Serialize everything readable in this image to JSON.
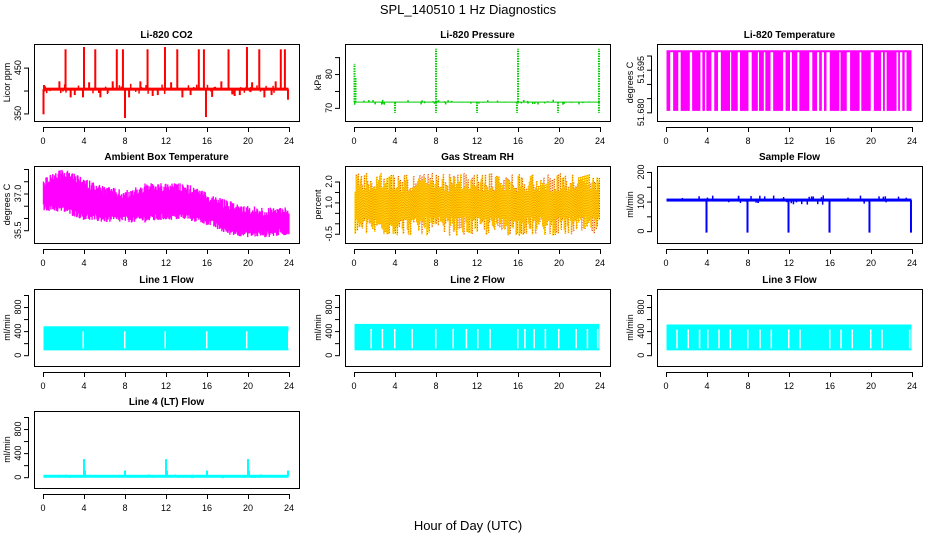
{
  "title": "SPL_140510  1 Hz Diagnostics",
  "x_axis_label": "Hour of Day (UTC)",
  "chart_data": [
    {
      "id": "co2",
      "type": "line",
      "title": "Li-820 CO2",
      "ylabel": "Licor ppm",
      "color": "#ff0000",
      "xlim": [
        0,
        24
      ],
      "ylim": [
        340,
        495
      ],
      "xticks": [
        0,
        4,
        8,
        12,
        16,
        20,
        24
      ],
      "yticks": [
        350,
        400,
        450
      ],
      "ytick_labels": [
        "350",
        "",
        "450"
      ],
      "baseline": 403,
      "spread": 3,
      "spikes": [
        {
          "x": 0.05,
          "y": 348
        },
        {
          "x": 0.1,
          "y": 412
        },
        {
          "x": 1.6,
          "y": 420
        },
        {
          "x": 2.2,
          "y": 490
        },
        {
          "x": 2.7,
          "y": 385
        },
        {
          "x": 3.1,
          "y": 390
        },
        {
          "x": 3.9,
          "y": 385
        },
        {
          "x": 4.0,
          "y": 495
        },
        {
          "x": 4.5,
          "y": 418
        },
        {
          "x": 5.1,
          "y": 490
        },
        {
          "x": 5.6,
          "y": 385
        },
        {
          "x": 6.8,
          "y": 420
        },
        {
          "x": 7.2,
          "y": 490
        },
        {
          "x": 7.8,
          "y": 490
        },
        {
          "x": 8.0,
          "y": 340
        },
        {
          "x": 8.4,
          "y": 385
        },
        {
          "x": 9.5,
          "y": 420
        },
        {
          "x": 10.2,
          "y": 490
        },
        {
          "x": 10.7,
          "y": 388
        },
        {
          "x": 11.2,
          "y": 390
        },
        {
          "x": 11.9,
          "y": 495
        },
        {
          "x": 12.5,
          "y": 418
        },
        {
          "x": 13.1,
          "y": 490
        },
        {
          "x": 13.6,
          "y": 385
        },
        {
          "x": 14.4,
          "y": 390
        },
        {
          "x": 15.2,
          "y": 490
        },
        {
          "x": 15.7,
          "y": 490
        },
        {
          "x": 15.9,
          "y": 342
        },
        {
          "x": 16.5,
          "y": 386
        },
        {
          "x": 17.4,
          "y": 420
        },
        {
          "x": 18.1,
          "y": 490
        },
        {
          "x": 18.7,
          "y": 388
        },
        {
          "x": 19.2,
          "y": 390
        },
        {
          "x": 19.9,
          "y": 495
        },
        {
          "x": 20.4,
          "y": 418
        },
        {
          "x": 21.1,
          "y": 490
        },
        {
          "x": 21.6,
          "y": 385
        },
        {
          "x": 22.3,
          "y": 390
        },
        {
          "x": 22.7,
          "y": 420
        },
        {
          "x": 23.2,
          "y": 490
        },
        {
          "x": 23.6,
          "y": 490
        },
        {
          "x": 23.9,
          "y": 380
        }
      ]
    },
    {
      "id": "pressure",
      "type": "scatter",
      "title": "Li-820 Pressure",
      "ylabel": "kPa",
      "color": "#00cc00",
      "xlim": [
        0,
        24
      ],
      "ylim": [
        67,
        88
      ],
      "xticks": [
        0,
        4,
        8,
        12,
        16,
        20,
        24
      ],
      "yticks": [
        70,
        75,
        80,
        85
      ],
      "ytick_labels": [
        "70",
        "",
        "80",
        ""
      ],
      "baseline": 71.7,
      "spread": 0.2,
      "spikes": [
        {
          "x": 0.05,
          "y": 83
        },
        {
          "x": 0.15,
          "y": 79
        },
        {
          "x": 4.0,
          "y": 68.5
        },
        {
          "x": 8.0,
          "y": 87.5
        },
        {
          "x": 8.0,
          "y": 68.5
        },
        {
          "x": 12.0,
          "y": 68.5
        },
        {
          "x": 16.0,
          "y": 87.5
        },
        {
          "x": 15.9,
          "y": 68.5
        },
        {
          "x": 19.9,
          "y": 68.5
        },
        {
          "x": 23.9,
          "y": 87.5
        },
        {
          "x": 23.9,
          "y": 68.5
        }
      ]
    },
    {
      "id": "licor-temp",
      "type": "line",
      "title": "Li-820 Temperature",
      "ylabel": "degrees C",
      "color": "#ff00ff",
      "xlim": [
        0,
        24
      ],
      "ylim": [
        51.678,
        51.703
      ],
      "xticks": [
        0,
        4,
        8,
        12,
        16,
        20,
        24
      ],
      "yticks": [
        51.68,
        51.685,
        51.69,
        51.695,
        51.7
      ],
      "ytick_labels": [
        "51.680",
        "",
        "",
        "51.695",
        ""
      ],
      "levels": [
        51.6805,
        51.7015
      ],
      "note": "signal toggles between two quantized levels"
    },
    {
      "id": "ambient-temp",
      "type": "line",
      "title": "Ambient Box Temperature",
      "ylabel": "degrees C",
      "color": "#ff00ff",
      "xlim": [
        0,
        24
      ],
      "ylim": [
        35.1,
        38.0
      ],
      "xticks": [
        0,
        4,
        8,
        12,
        16,
        20,
        24
      ],
      "yticks": [
        35.5,
        36.0,
        36.5,
        37.0,
        37.5,
        38.0
      ],
      "ytick_labels": [
        "35.5",
        "",
        "",
        "37.0",
        "",
        ""
      ],
      "envelope": [
        {
          "x": 0,
          "lo": 36.4,
          "hi": 37.5
        },
        {
          "x": 2,
          "lo": 36.3,
          "hi": 37.9
        },
        {
          "x": 4,
          "lo": 36.0,
          "hi": 37.5
        },
        {
          "x": 6,
          "lo": 35.9,
          "hi": 37.2
        },
        {
          "x": 8,
          "lo": 35.9,
          "hi": 37.0
        },
        {
          "x": 10,
          "lo": 35.9,
          "hi": 37.3
        },
        {
          "x": 12,
          "lo": 36.0,
          "hi": 37.3
        },
        {
          "x": 14,
          "lo": 36.0,
          "hi": 37.3
        },
        {
          "x": 16,
          "lo": 35.8,
          "hi": 36.9
        },
        {
          "x": 18,
          "lo": 35.4,
          "hi": 36.6
        },
        {
          "x": 20,
          "lo": 35.3,
          "hi": 36.4
        },
        {
          "x": 22,
          "lo": 35.3,
          "hi": 36.3
        },
        {
          "x": 24,
          "lo": 35.4,
          "hi": 36.4
        }
      ]
    },
    {
      "id": "gas-rh",
      "type": "line",
      "title": "Gas Stream RH",
      "ylabel": "percent",
      "color": "#ffcc00",
      "color2": "#dd2200",
      "xlim": [
        0,
        24
      ],
      "ylim": [
        -0.8,
        2.6
      ],
      "xticks": [
        0,
        4,
        8,
        12,
        16,
        20,
        24
      ],
      "yticks": [
        -0.5,
        0,
        0.5,
        1.0,
        1.5,
        2.0
      ],
      "ytick_labels": [
        "-0.5",
        "",
        "",
        "1.0",
        "",
        "2.0"
      ],
      "band_lo": -0.6,
      "band_hi": 2.4
    },
    {
      "id": "sample-flow",
      "type": "line",
      "title": "Sample Flow",
      "ylabel": "ml/min",
      "color": "#0000ff",
      "xlim": [
        0,
        24
      ],
      "ylim": [
        -30,
        210
      ],
      "xticks": [
        0,
        4,
        8,
        12,
        16,
        20,
        24
      ],
      "yticks": [
        0,
        50,
        100,
        150,
        200
      ],
      "ytick_labels": [
        "0",
        "",
        "100",
        "",
        "200"
      ],
      "baseline": 105,
      "spread": 4,
      "spikes": [
        {
          "x": 3.95,
          "y": -5
        },
        {
          "x": 7.95,
          "y": -5
        },
        {
          "x": 11.95,
          "y": -5
        },
        {
          "x": 15.95,
          "y": -5
        },
        {
          "x": 19.85,
          "y": -5
        },
        {
          "x": 23.9,
          "y": -5
        }
      ]
    },
    {
      "id": "line1-flow",
      "type": "line",
      "title": "Line 1 Flow",
      "ylabel": "ml/min",
      "color": "#00ffff",
      "xlim": [
        0,
        24
      ],
      "ylim": [
        -130,
        1050
      ],
      "xticks": [
        0,
        4,
        8,
        12,
        16,
        20,
        24
      ],
      "yticks": [
        0,
        200,
        400,
        600,
        800,
        1000
      ],
      "ytick_labels": [
        "0",
        "",
        "400",
        "",
        "800",
        ""
      ],
      "band_lo": 80,
      "band_hi": 480,
      "gaps": [
        3.85,
        7.9,
        11.85,
        15.9,
        19.8,
        23.9
      ]
    },
    {
      "id": "line2-flow",
      "type": "line",
      "title": "Line 2 Flow",
      "ylabel": "ml/min",
      "color": "#00ffff",
      "xlim": [
        0,
        24
      ],
      "ylim": [
        -130,
        1050
      ],
      "xticks": [
        0,
        4,
        8,
        12,
        16,
        20,
        24
      ],
      "yticks": [
        0,
        200,
        400,
        600,
        800,
        1000
      ],
      "ytick_labels": [
        "0",
        "",
        "400",
        "",
        "800",
        ""
      ],
      "band_lo": 80,
      "band_hi": 520,
      "gaps": [
        1.6,
        2.7,
        3.9,
        5.6,
        7.9,
        9.6,
        10.9,
        12.0,
        13.2,
        15.9,
        16.6,
        17.5,
        18.6,
        19.9,
        21.6,
        22.7,
        23.7
      ]
    },
    {
      "id": "line3-flow",
      "type": "line",
      "title": "Line 3 Flow",
      "ylabel": "ml/min",
      "color": "#00ffff",
      "xlim": [
        0,
        24
      ],
      "ylim": [
        -130,
        1050
      ],
      "xticks": [
        0,
        4,
        8,
        12,
        16,
        20,
        24
      ],
      "yticks": [
        0,
        200,
        400,
        600,
        800,
        1000
      ],
      "ytick_labels": [
        "0",
        "",
        "400",
        "",
        "800",
        ""
      ],
      "band_lo": 80,
      "band_hi": 510,
      "gaps": [
        1.0,
        2.1,
        3.2,
        4.0,
        5.1,
        6.2,
        7.9,
        9.1,
        10.2,
        11.9,
        13.0,
        15.9,
        17.0,
        18.1,
        19.9,
        21.0,
        23.7
      ]
    },
    {
      "id": "line4-flow",
      "type": "line",
      "title": "Line 4 (LT) Flow",
      "ylabel": "ml/min",
      "color": "#00ffff",
      "xlim": [
        0,
        24
      ],
      "ylim": [
        -130,
        1050
      ],
      "xticks": [
        0,
        4,
        8,
        12,
        16,
        20,
        24
      ],
      "yticks": [
        0,
        200,
        400,
        600,
        800,
        1000
      ],
      "ytick_labels": [
        "0",
        "",
        "400",
        "",
        "800",
        ""
      ],
      "baseline": 15,
      "spread": 8,
      "spikes": [
        {
          "x": 4.0,
          "y": 300
        },
        {
          "x": 4.1,
          "y": 110
        },
        {
          "x": 8.0,
          "y": 110
        },
        {
          "x": 12.0,
          "y": 300
        },
        {
          "x": 12.1,
          "y": 110
        },
        {
          "x": 16.0,
          "y": 110
        },
        {
          "x": 20.0,
          "y": 300
        },
        {
          "x": 20.1,
          "y": 110
        },
        {
          "x": 23.9,
          "y": 110
        }
      ]
    }
  ]
}
